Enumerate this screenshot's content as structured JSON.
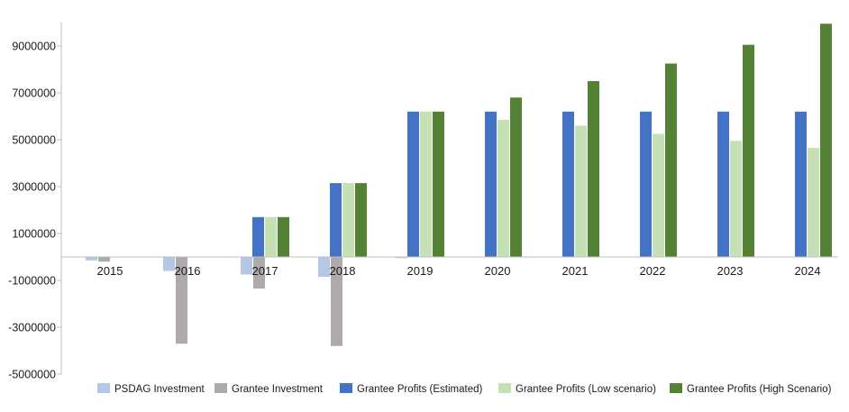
{
  "chart_data": {
    "type": "bar",
    "title": "",
    "xlabel": "",
    "ylabel": "",
    "ylim": [
      -5000000,
      10000000
    ],
    "yticks": [
      9000000,
      7000000,
      5000000,
      3000000,
      1000000,
      -1000000,
      -3000000,
      -5000000
    ],
    "ytick_labels": [
      "9000000",
      "7000000",
      "5000000",
      "3000000",
      "1000000",
      "-1000000",
      "-3000000",
      "-5000000"
    ],
    "categories": [
      "2015",
      "2016",
      "2017",
      "2018",
      "2019",
      "2020",
      "2021",
      "2022",
      "2023",
      "2024"
    ],
    "legend_position": "bottom-right",
    "series": [
      {
        "name": "PSDAG Investment",
        "color": "#b4c7e7",
        "values": [
          -150000,
          -600000,
          -750000,
          -850000,
          -50000,
          0,
          0,
          0,
          0,
          0
        ]
      },
      {
        "name": "Grantee Investment",
        "color": "#aeaaaa",
        "values": [
          -200000,
          -3700000,
          -1350000,
          -3800000,
          0,
          0,
          0,
          0,
          0,
          0
        ]
      },
      {
        "name": "Grantee Profits (Estimated)",
        "color": "#4472c4",
        "values": [
          0,
          0,
          1700000,
          3150000,
          6200000,
          6200000,
          6200000,
          6200000,
          6200000,
          6200000
        ]
      },
      {
        "name": "Grantee Profits (Low scenario)",
        "color": "#c5e0b4",
        "values": [
          0,
          0,
          1700000,
          3150000,
          6200000,
          5850000,
          5600000,
          5250000,
          4950000,
          4650000
        ]
      },
      {
        "name": "Grantee Profits (High Scenario)",
        "color": "#548235",
        "values": [
          0,
          0,
          1700000,
          3150000,
          6200000,
          6800000,
          7500000,
          8250000,
          9050000,
          9950000
        ]
      }
    ]
  }
}
